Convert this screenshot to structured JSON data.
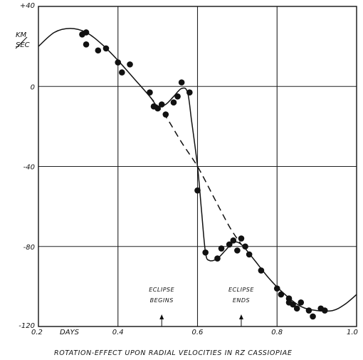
{
  "chart_data": {
    "type": "scatter",
    "title": "ROTATION-EFFECT UPON RADIAL VELOCITIES IN RZ CASSIOPIAE",
    "xlabel": "DAYS",
    "ylabel": "KM / SEC",
    "xlim": [
      0.2,
      1.0
    ],
    "ylim": [
      -120,
      40
    ],
    "grid": true,
    "x_ticks": [
      0.2,
      0.4,
      0.6,
      0.8,
      1.0
    ],
    "x_tick_labels": [
      "0.2",
      "0.4",
      "0.6",
      "0.8",
      "1.0"
    ],
    "y_ticks": [
      40,
      0,
      -40,
      -80,
      -120
    ],
    "y_tick_labels": [
      "+40",
      "0",
      "-40",
      "-80",
      "-120"
    ],
    "ylabel_top": "KM",
    "ylabel_bottom": "SEC",
    "points": [
      {
        "x": 0.31,
        "y": 26
      },
      {
        "x": 0.32,
        "y": 27
      },
      {
        "x": 0.32,
        "y": 21
      },
      {
        "x": 0.35,
        "y": 18
      },
      {
        "x": 0.37,
        "y": 19
      },
      {
        "x": 0.4,
        "y": 12
      },
      {
        "x": 0.41,
        "y": 7
      },
      {
        "x": 0.43,
        "y": 11
      },
      {
        "x": 0.48,
        "y": -3
      },
      {
        "x": 0.49,
        "y": -10
      },
      {
        "x": 0.5,
        "y": -11
      },
      {
        "x": 0.51,
        "y": -9
      },
      {
        "x": 0.52,
        "y": -14
      },
      {
        "x": 0.54,
        "y": -8
      },
      {
        "x": 0.55,
        "y": -5
      },
      {
        "x": 0.56,
        "y": 2
      },
      {
        "x": 0.58,
        "y": -3
      },
      {
        "x": 0.6,
        "y": -52
      },
      {
        "x": 0.62,
        "y": -83
      },
      {
        "x": 0.65,
        "y": -86
      },
      {
        "x": 0.66,
        "y": -81
      },
      {
        "x": 0.68,
        "y": -79
      },
      {
        "x": 0.69,
        "y": -77
      },
      {
        "x": 0.7,
        "y": -82
      },
      {
        "x": 0.71,
        "y": -76
      },
      {
        "x": 0.72,
        "y": -80
      },
      {
        "x": 0.73,
        "y": -84
      },
      {
        "x": 0.76,
        "y": -92
      },
      {
        "x": 0.8,
        "y": -101
      },
      {
        "x": 0.81,
        "y": -104
      },
      {
        "x": 0.83,
        "y": -106
      },
      {
        "x": 0.83,
        "y": -108
      },
      {
        "x": 0.84,
        "y": -109
      },
      {
        "x": 0.85,
        "y": -111
      },
      {
        "x": 0.86,
        "y": -108
      },
      {
        "x": 0.88,
        "y": -112
      },
      {
        "x": 0.89,
        "y": -115
      },
      {
        "x": 0.91,
        "y": -111
      },
      {
        "x": 0.92,
        "y": -112
      }
    ],
    "series": [
      {
        "style": "solid",
        "points": [
          [
            0.2,
            20
          ],
          [
            0.24,
            27
          ],
          [
            0.28,
            29
          ],
          [
            0.32,
            27
          ],
          [
            0.36,
            21
          ],
          [
            0.4,
            13
          ],
          [
            0.44,
            4
          ],
          [
            0.48,
            -5
          ],
          [
            0.5,
            -10
          ],
          [
            0.52,
            -9
          ],
          [
            0.54,
            -5
          ],
          [
            0.56,
            -1
          ],
          [
            0.575,
            -3
          ],
          [
            0.585,
            -17
          ],
          [
            0.6,
            -40
          ],
          [
            0.61,
            -62
          ],
          [
            0.62,
            -83
          ],
          [
            0.63,
            -87
          ],
          [
            0.65,
            -86
          ],
          [
            0.67,
            -82
          ],
          [
            0.69,
            -78
          ],
          [
            0.71,
            -79
          ],
          [
            0.74,
            -86
          ],
          [
            0.78,
            -96
          ],
          [
            0.82,
            -104
          ],
          [
            0.86,
            -110
          ],
          [
            0.9,
            -112
          ],
          [
            0.94,
            -112
          ],
          [
            0.97,
            -109
          ],
          [
            1.0,
            -104
          ]
        ]
      },
      {
        "style": "dashed",
        "points": [
          [
            0.48,
            -5
          ],
          [
            0.52,
            -15
          ],
          [
            0.56,
            -28
          ],
          [
            0.6,
            -40
          ],
          [
            0.64,
            -55
          ],
          [
            0.68,
            -70
          ],
          [
            0.71,
            -79
          ]
        ]
      }
    ],
    "annotations": [
      {
        "text": [
          "ECLIPSE",
          "BEGINS"
        ],
        "x": 0.51
      },
      {
        "text": [
          "ECLIPSE",
          "ENDS"
        ],
        "x": 0.71
      }
    ]
  }
}
